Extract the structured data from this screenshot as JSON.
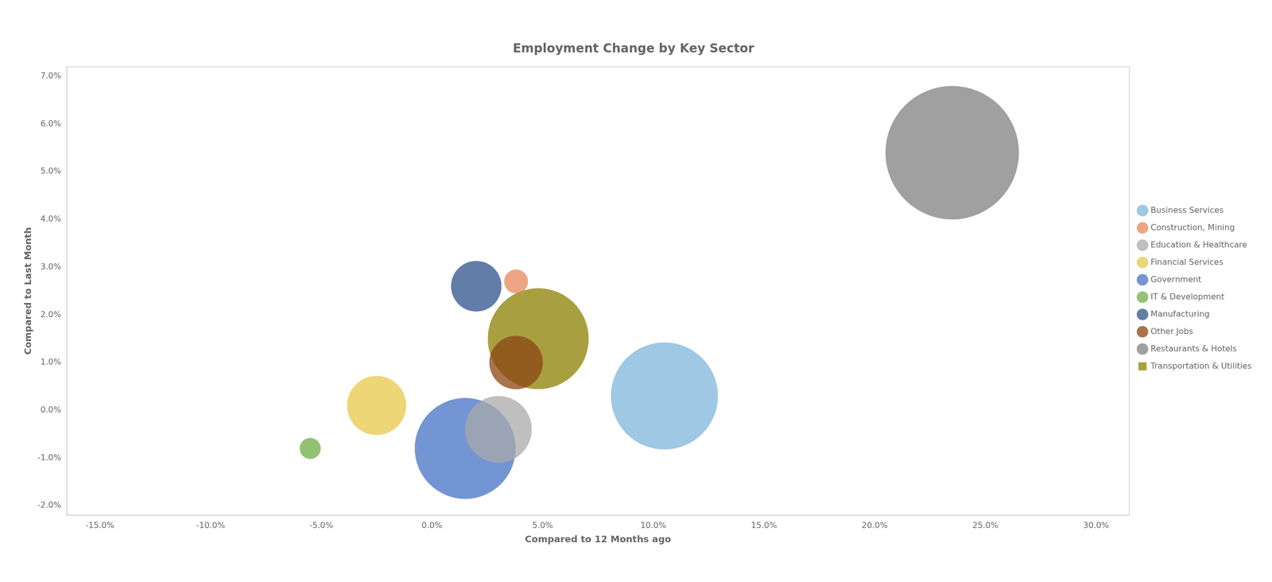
{
  "chart_data": {
    "type": "scatter",
    "title": "Employment Change by Key Sector",
    "x_label": "Compared to 12 Months ago",
    "y_label": "Compared to Last Month",
    "xlim": [
      -0.165,
      0.315
    ],
    "ylim": [
      -0.022,
      0.072
    ],
    "xticks": [
      {
        "value": -0.15,
        "label": "-15.0%"
      },
      {
        "value": -0.1,
        "label": "-10.0%"
      },
      {
        "value": -0.05,
        "label": "-5.0%"
      },
      {
        "value": 0.0,
        "label": "0.0%"
      },
      {
        "value": 0.05,
        "label": "5.0%"
      },
      {
        "value": 0.1,
        "label": "10.0%"
      },
      {
        "value": 0.15,
        "label": "15.0%"
      },
      {
        "value": 0.2,
        "label": "20.0%"
      },
      {
        "value": 0.25,
        "label": "25.0%"
      },
      {
        "value": 0.3,
        "label": "30.0%"
      }
    ],
    "yticks": [
      {
        "value": -0.02,
        "label": "-2.0%"
      },
      {
        "value": -0.01,
        "label": "-1.0%"
      },
      {
        "value": 0.0,
        "label": "0.0%"
      },
      {
        "value": 0.01,
        "label": "1.0%"
      },
      {
        "value": 0.02,
        "label": "2.0%"
      },
      {
        "value": 0.03,
        "label": "3.0%"
      },
      {
        "value": 0.04,
        "label": "4.0%"
      },
      {
        "value": 0.05,
        "label": "5.0%"
      },
      {
        "value": 0.06,
        "label": "6.0%"
      },
      {
        "value": 0.07,
        "label": "7.0%"
      }
    ],
    "grid": false,
    "legend": "right",
    "series": [
      {
        "name": "Business Services",
        "color": "#7eb6d9",
        "marker": "circle",
        "x": [
          0.105
        ],
        "values": [
          0.003
        ],
        "sizes": [
          18000
        ]
      },
      {
        "name": "Construction, Mining",
        "color": "#e8875a",
        "marker": "circle",
        "x": [
          0.038
        ],
        "values": [
          0.027
        ],
        "sizes": [
          900
        ]
      },
      {
        "name": "Education & Healthcare",
        "color": "#aaaaaa",
        "marker": "circle",
        "x": [
          0.03
        ],
        "values": [
          -0.004
        ],
        "sizes": [
          7000
        ]
      },
      {
        "name": "Financial Services",
        "color": "#e8c84a",
        "marker": "circle",
        "x": [
          -0.025
        ],
        "values": [
          0.001
        ],
        "sizes": [
          5500
        ]
      },
      {
        "name": "Government",
        "color": "#4472c4",
        "marker": "circle",
        "x": [
          0.015
        ],
        "values": [
          -0.008
        ],
        "sizes": [
          16000
        ]
      },
      {
        "name": "IT & Development",
        "color": "#70ad47",
        "marker": "circle",
        "x": [
          -0.055
        ],
        "values": [
          -0.008
        ],
        "sizes": [
          700
        ]
      },
      {
        "name": "Manufacturing",
        "color": "#2e528a",
        "marker": "circle",
        "x": [
          0.02
        ],
        "values": [
          0.026
        ],
        "sizes": [
          4000
        ]
      },
      {
        "name": "Other Jobs",
        "color": "#8b4513",
        "marker": "circle",
        "x": [
          0.038
        ],
        "values": [
          0.01
        ],
        "sizes": [
          4500
        ]
      },
      {
        "name": "Restaurants & Hotels",
        "color": "#808080",
        "marker": "circle",
        "x": [
          0.235
        ],
        "values": [
          0.054
        ],
        "sizes": [
          28000
        ]
      },
      {
        "name": "Transportation & Utilities",
        "color": "#8b8000",
        "marker": "square",
        "x": [
          0.048
        ],
        "values": [
          0.015
        ],
        "sizes": [
          16000
        ]
      }
    ]
  }
}
